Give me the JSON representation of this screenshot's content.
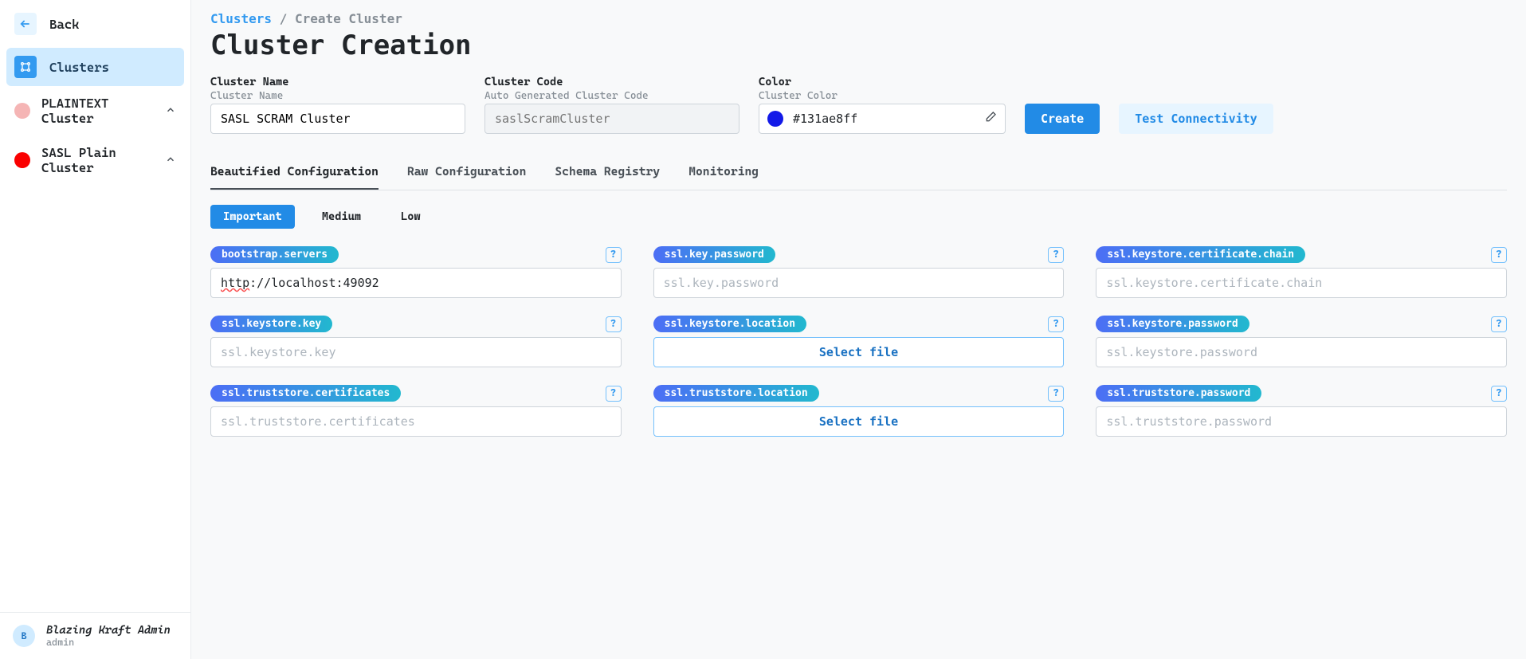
{
  "sidebar": {
    "back_label": "Back",
    "nav_label": "Clusters",
    "clusters": [
      {
        "label": "PLAINTEXT Cluster",
        "color": "#f5b5b5"
      },
      {
        "label": "SASL Plain Cluster",
        "color": "#fa0000"
      }
    ],
    "user": {
      "name": "Blazing Kraft Admin",
      "role": "admin",
      "initial": "B"
    }
  },
  "breadcrumb": {
    "root": "Clusters",
    "sep": " / ",
    "current": "Create Cluster"
  },
  "page_title": "Cluster Creation",
  "fields": {
    "name": {
      "label": "Cluster Name",
      "sub": "Cluster Name",
      "value": "SASL SCRAM Cluster"
    },
    "code": {
      "label": "Cluster Code",
      "sub": "Auto Generated Cluster Code",
      "placeholder": "saslScramCluster"
    },
    "color": {
      "label": "Color",
      "sub": "Cluster Color",
      "hex": "#131ae8ff",
      "swatch": "#131ae8"
    }
  },
  "buttons": {
    "create": "Create",
    "test": "Test Connectivity"
  },
  "tabs": [
    "Beautified Configuration",
    "Raw Configuration",
    "Schema Registry",
    "Monitoring"
  ],
  "active_tab": 0,
  "importance": [
    "Important",
    "Medium",
    "Low"
  ],
  "active_importance": 0,
  "select_file_label": "Select file",
  "config": [
    {
      "key": "bootstrap.servers",
      "value": "http://localhost:49092",
      "value_prefix_underline": "http",
      "type": "text"
    },
    {
      "key": "ssl.key.password",
      "placeholder": "ssl.key.password",
      "type": "text"
    },
    {
      "key": "ssl.keystore.certificate.chain",
      "placeholder": "ssl.keystore.certificate.chain",
      "type": "text"
    },
    {
      "key": "ssl.keystore.key",
      "placeholder": "ssl.keystore.key",
      "type": "text"
    },
    {
      "key": "ssl.keystore.location",
      "type": "file"
    },
    {
      "key": "ssl.keystore.password",
      "placeholder": "ssl.keystore.password",
      "type": "text"
    },
    {
      "key": "ssl.truststore.certificates",
      "placeholder": "ssl.truststore.certificates",
      "type": "text"
    },
    {
      "key": "ssl.truststore.location",
      "type": "file"
    },
    {
      "key": "ssl.truststore.password",
      "placeholder": "ssl.truststore.password",
      "type": "text"
    }
  ]
}
